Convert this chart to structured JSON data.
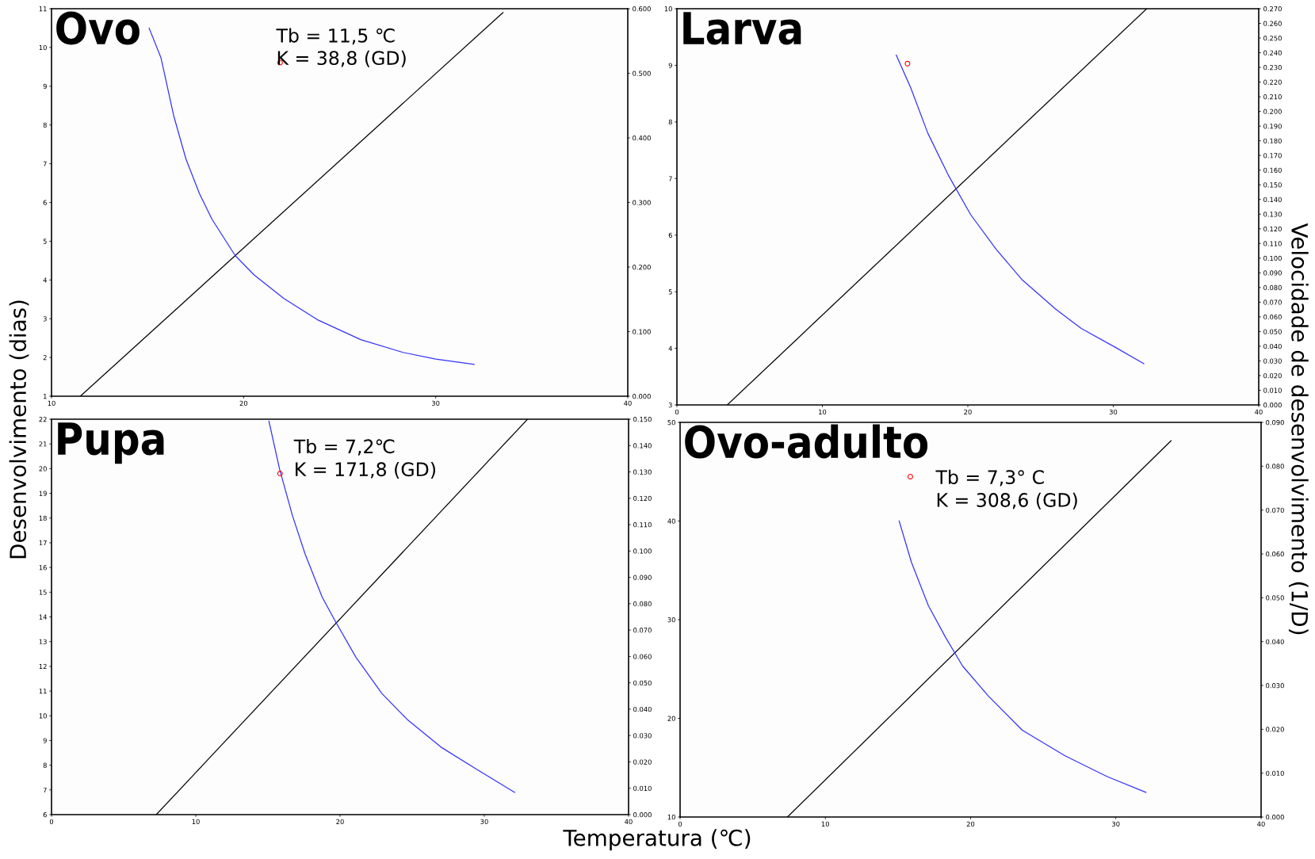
{
  "chart_data": [
    {
      "type": "line",
      "title": "Ovo",
      "xlabel": "Temperatura (℃)",
      "ylabel": "Desenvolvimento (dias)",
      "y2label": "Velocidade de desenvolvimento (1/D)",
      "annotations": [
        "Tb = 11,5 ℃",
        "K = 38,8 (GD)"
      ],
      "xlim": [
        10,
        40
      ],
      "xticks": [
        10,
        20,
        30,
        40
      ],
      "ylim": [
        1,
        11
      ],
      "yticks": [
        1,
        2,
        3,
        4,
        5,
        6,
        7,
        8,
        9,
        10,
        11
      ],
      "y2lim": [
        0,
        0.6
      ],
      "y2ticks": [
        {
          "value": 0,
          "label": "0.000"
        },
        {
          "value": 0.1,
          "label": "0.100"
        },
        {
          "value": 0.2,
          "label": "0.200"
        },
        {
          "value": 0.3,
          "label": "0.300"
        },
        {
          "value": 0.4,
          "label": "0.400"
        },
        {
          "value": 0.5,
          "label": "0.500"
        },
        {
          "value": 0.6,
          "label": "0.600"
        }
      ],
      "grid": false,
      "series": [
        {
          "color": "#3333ff",
          "x": [
            15.08,
            15.7,
            16.36,
            17.0,
            17.7,
            18.35,
            19.56,
            20.55,
            22.1,
            23.9,
            26.1,
            28.3,
            30.0,
            32.0
          ],
          "values": [
            10.5,
            9.73,
            8.24,
            7.12,
            6.23,
            5.57,
            4.63,
            4.13,
            3.52,
            2.96,
            2.46,
            2.13,
            1.96,
            1.82
          ]
        },
        {
          "color": "#000000",
          "axis": "y2",
          "x": [
            11.5,
            33.5
          ],
          "values": [
            0,
            0.594
          ]
        },
        {
          "type": "scatter",
          "color": "#ff0000",
          "marker": "circle",
          "x": [
            21.9
          ],
          "values": [
            9.61
          ]
        }
      ]
    },
    {
      "type": "line",
      "title": "Larva",
      "xlim": [
        0,
        40
      ],
      "xticks": [
        0,
        10,
        20,
        30,
        40
      ],
      "ylim": [
        3,
        10
      ],
      "yticks": [
        3,
        4,
        5,
        6,
        7,
        8,
        9,
        10
      ],
      "y2lim": [
        0,
        0.27
      ],
      "y2ticks": [
        {
          "value": 0,
          "label": "0.000"
        },
        {
          "value": 0.01,
          "label": "0.010"
        },
        {
          "value": 0.02,
          "label": "0.020"
        },
        {
          "value": 0.03,
          "label": "0.030"
        },
        {
          "value": 0.04,
          "label": "0.040"
        },
        {
          "value": 0.05,
          "label": "0.050"
        },
        {
          "value": 0.06,
          "label": "0.060"
        },
        {
          "value": 0.07,
          "label": "0.070"
        },
        {
          "value": 0.08,
          "label": "0.080"
        },
        {
          "value": 0.09,
          "label": "0.090"
        },
        {
          "value": 0.1,
          "label": "0.100"
        },
        {
          "value": 0.11,
          "label": "0.110"
        },
        {
          "value": 0.12,
          "label": "0.120"
        },
        {
          "value": 0.13,
          "label": "0.130"
        },
        {
          "value": 0.14,
          "label": "0.140"
        },
        {
          "value": 0.15,
          "label": "0.150"
        },
        {
          "value": 0.16,
          "label": "0.160"
        },
        {
          "value": 0.17,
          "label": "0.170"
        },
        {
          "value": 0.18,
          "label": "0.180"
        },
        {
          "value": 0.19,
          "label": "0.190"
        },
        {
          "value": 0.2,
          "label": "0.200"
        },
        {
          "value": 0.21,
          "label": "0.210"
        },
        {
          "value": 0.22,
          "label": "0.220"
        },
        {
          "value": 0.23,
          "label": "0.230"
        },
        {
          "value": 0.24,
          "label": "0.240"
        },
        {
          "value": 0.25,
          "label": "0.250"
        },
        {
          "value": 0.26,
          "label": "0.260"
        },
        {
          "value": 0.27,
          "label": "0.270"
        }
      ],
      "grid": false,
      "series": [
        {
          "color": "#3333ff",
          "x": [
            15.08,
            16.08,
            17.25,
            18.7,
            20.2,
            21.95,
            23.7,
            26.05,
            27.8,
            30.2,
            32.1
          ],
          "values": [
            9.18,
            8.6,
            7.8,
            7.04,
            6.36,
            5.75,
            5.22,
            4.69,
            4.35,
            4.01,
            3.73
          ]
        },
        {
          "color": "#000000",
          "axis": "y2",
          "x": [
            3.46,
            32.3
          ],
          "values": [
            0,
            0.27
          ]
        },
        {
          "type": "scatter",
          "color": "#ff0000",
          "marker": "circle",
          "x": [
            15.85
          ],
          "values": [
            9.03
          ]
        }
      ]
    },
    {
      "type": "line",
      "title": "Pupa",
      "annotations": [
        "Tb = 7,2℃",
        "K = 171,8 (GD)"
      ],
      "xlim": [
        0,
        40
      ],
      "xticks": [
        0,
        10,
        20,
        30,
        40
      ],
      "ylim": [
        6,
        22
      ],
      "yticks": [
        6,
        7,
        8,
        9,
        10,
        11,
        12,
        13,
        14,
        15,
        16,
        17,
        18,
        19,
        20,
        21,
        22
      ],
      "y2lim": [
        0,
        0.15
      ],
      "y2ticks": [
        {
          "value": 0,
          "label": "0.000"
        },
        {
          "value": 0.01,
          "label": "0.010"
        },
        {
          "value": 0.02,
          "label": "0.020"
        },
        {
          "value": 0.03,
          "label": "0.030"
        },
        {
          "value": 0.04,
          "label": "0.040"
        },
        {
          "value": 0.05,
          "label": "0.050"
        },
        {
          "value": 0.06,
          "label": "0.060"
        },
        {
          "value": 0.07,
          "label": "0.070"
        },
        {
          "value": 0.08,
          "label": "0.080"
        },
        {
          "value": 0.09,
          "label": "0.090"
        },
        {
          "value": 0.1,
          "label": "0.100"
        },
        {
          "value": 0.11,
          "label": "0.110"
        },
        {
          "value": 0.12,
          "label": "0.120"
        },
        {
          "value": 0.13,
          "label": "0.130"
        },
        {
          "value": 0.14,
          "label": "0.140"
        },
        {
          "value": 0.15,
          "label": "0.150"
        }
      ],
      "grid": false,
      "series": [
        {
          "color": "#3333ff",
          "x": [
            15.07,
            15.8,
            16.7,
            17.58,
            18.76,
            19.65,
            21.1,
            22.9,
            24.66,
            27.0,
            29.4,
            32.1
          ],
          "values": [
            21.92,
            20.0,
            18.1,
            16.54,
            14.8,
            13.85,
            12.37,
            10.9,
            9.85,
            8.73,
            7.86,
            6.9
          ]
        },
        {
          "color": "#000000",
          "axis": "y2",
          "x": [
            7.26,
            33.0
          ],
          "values": [
            0,
            0.15
          ]
        },
        {
          "type": "scatter",
          "color": "#ff0000",
          "marker": "circle",
          "x": [
            15.84
          ],
          "values": [
            19.8
          ]
        }
      ]
    },
    {
      "type": "line",
      "title": "Ovo-adulto",
      "annotations": [
        "Tb = 7,3° C",
        "K = 308,6 (GD)"
      ],
      "xlim": [
        0,
        40
      ],
      "xticks": [
        0,
        10,
        20,
        30,
        40
      ],
      "ylim": [
        10,
        50
      ],
      "yticks": [
        10,
        20,
        30,
        40,
        50
      ],
      "y2lim": [
        0,
        0.09
      ],
      "y2ticks": [
        {
          "value": 0,
          "label": "0.000"
        },
        {
          "value": 0.01,
          "label": "0.010"
        },
        {
          "value": 0.02,
          "label": "0.020"
        },
        {
          "value": 0.03,
          "label": "0.030"
        },
        {
          "value": 0.04,
          "label": "0.040"
        },
        {
          "value": 0.05,
          "label": "0.050"
        },
        {
          "value": 0.06,
          "label": "0.060"
        },
        {
          "value": 0.07,
          "label": "0.070"
        },
        {
          "value": 0.08,
          "label": "0.080"
        },
        {
          "value": 0.09,
          "label": "0.090"
        }
      ],
      "grid": false,
      "series": [
        {
          "color": "#3333ff",
          "x": [
            15.08,
            15.93,
            17.1,
            18.28,
            19.45,
            21.2,
            23.56,
            26.5,
            29.4,
            32.07
          ],
          "values": [
            40.0,
            35.8,
            31.4,
            28.2,
            25.3,
            22.3,
            18.8,
            16.2,
            14.1,
            12.5
          ]
        },
        {
          "color": "#000000",
          "axis": "y2",
          "x": [
            7.39,
            33.8
          ],
          "values": [
            0,
            0.0858
          ]
        },
        {
          "type": "scatter",
          "color": "#ff0000",
          "marker": "circle",
          "x": [
            15.85
          ],
          "values": [
            44.5
          ]
        }
      ]
    }
  ]
}
